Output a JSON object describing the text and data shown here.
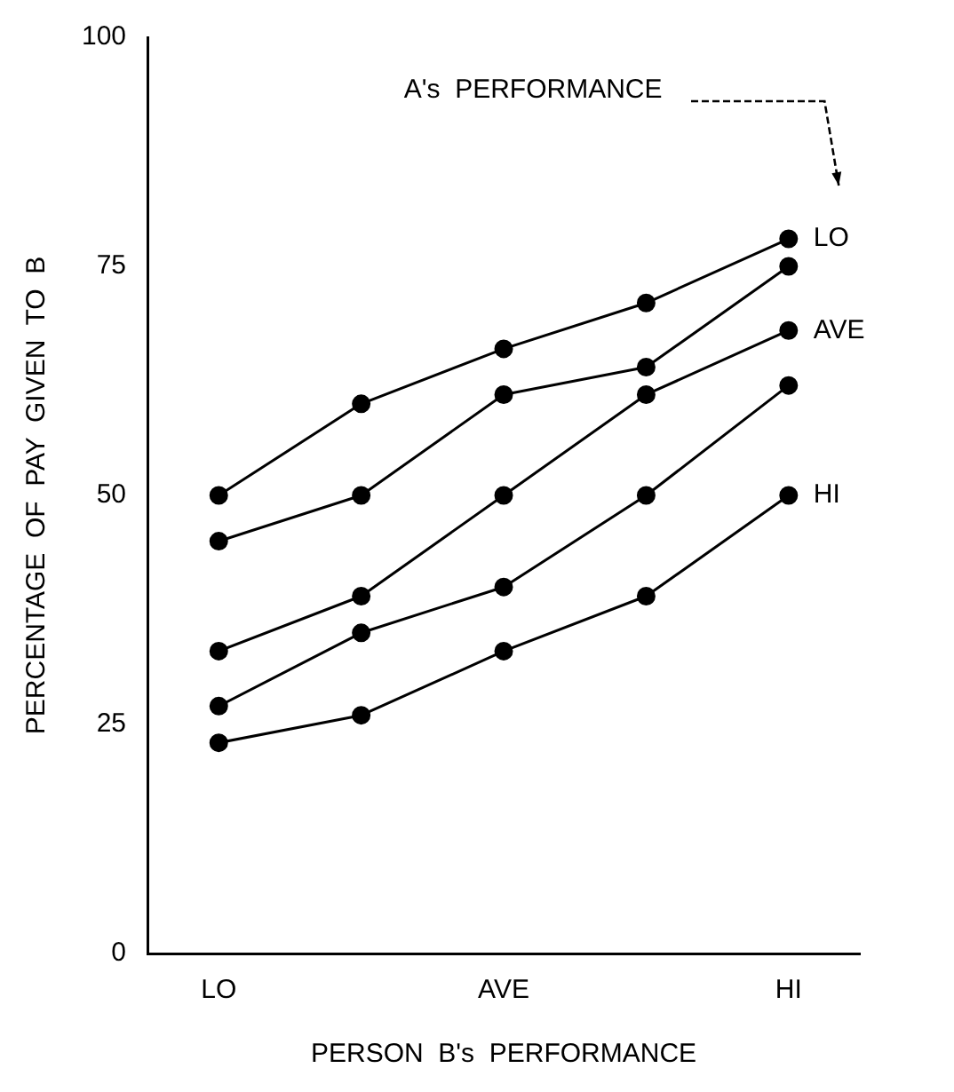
{
  "chart_data": {
    "type": "line",
    "xlabel": "PERSON  B's  PERFORMANCE",
    "ylabel": "PERCENTAGE  OF  PAY  GIVEN  TO  B",
    "categories": [
      "LO",
      null,
      "AVE",
      null,
      "HI"
    ],
    "series": [
      {
        "name": "LO",
        "color": "#000000",
        "values": [
          50,
          60,
          66,
          71,
          78
        ]
      },
      {
        "color": "#000000",
        "values": [
          45,
          50,
          61,
          64,
          75
        ]
      },
      {
        "name": "AVE",
        "color": "#000000",
        "values": [
          33,
          39,
          50,
          61,
          68
        ]
      },
      {
        "color": "#000000",
        "values": [
          27,
          35,
          40,
          50,
          62
        ]
      },
      {
        "name": "HI",
        "color": "#000000",
        "values": [
          23,
          26,
          33,
          39,
          50
        ]
      }
    ],
    "ylim": [
      0,
      100
    ],
    "yticks": [
      0,
      25,
      50,
      75,
      100
    ],
    "annotations": [
      "A's  PERFORMANCE"
    ],
    "marker": "circle",
    "line_style": "solid",
    "grid": false,
    "legend": false
  }
}
